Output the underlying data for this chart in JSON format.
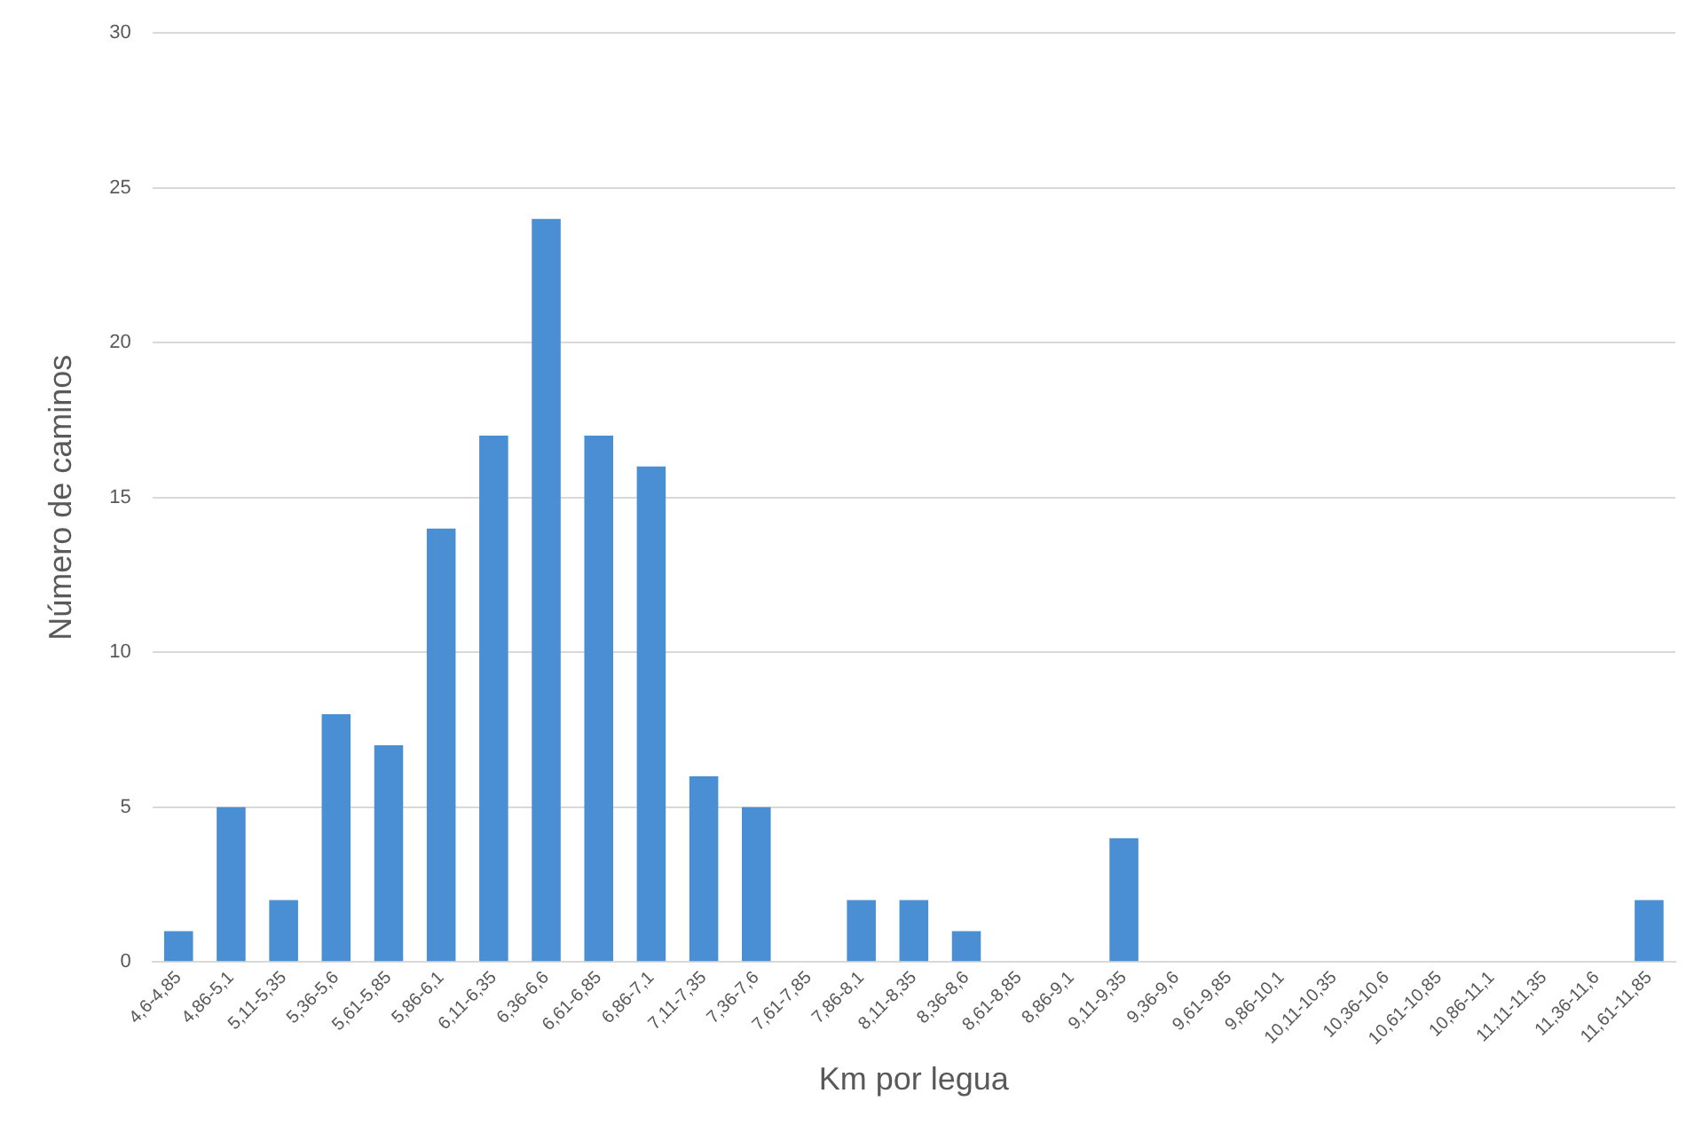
{
  "chart_data": {
    "type": "bar",
    "xlabel": "Km por legua",
    "ylabel": "Número de caminos",
    "categories": [
      "4,6-4,85",
      "4,86-5,1",
      "5,11-5,35",
      "5,36-5,6",
      "5,61-5,85",
      "5,86-6,1",
      "6,11-6,35",
      "6,36-6,6",
      "6,61-6,85",
      "6,86-7,1",
      "7,11-7,35",
      "7,36-7,6",
      "7,61-7,85",
      "7,86-8,1",
      "8,11-8,35",
      "8,36-8,6",
      "8,61-8,85",
      "8,86-9,1",
      "9,11-9,35",
      "9,36-9,6",
      "9,61-9,85",
      "9,86-10,1",
      "10,11-10,35",
      "10,36-10,6",
      "10,61-10,85",
      "10,86-11,1",
      "11,11-11,35",
      "11,36-11,6",
      "11,61-11,85"
    ],
    "values": [
      1,
      5,
      2,
      8,
      7,
      14,
      17,
      24,
      17,
      16,
      6,
      5,
      0,
      2,
      2,
      1,
      0,
      0,
      4,
      0,
      0,
      0,
      0,
      0,
      0,
      0,
      0,
      0,
      2
    ],
    "color": "#4a8fd4",
    "ylim": [
      0,
      30
    ],
    "yticks": [
      0,
      5,
      10,
      15,
      20,
      25,
      30
    ],
    "grid": "y",
    "legend": false
  }
}
